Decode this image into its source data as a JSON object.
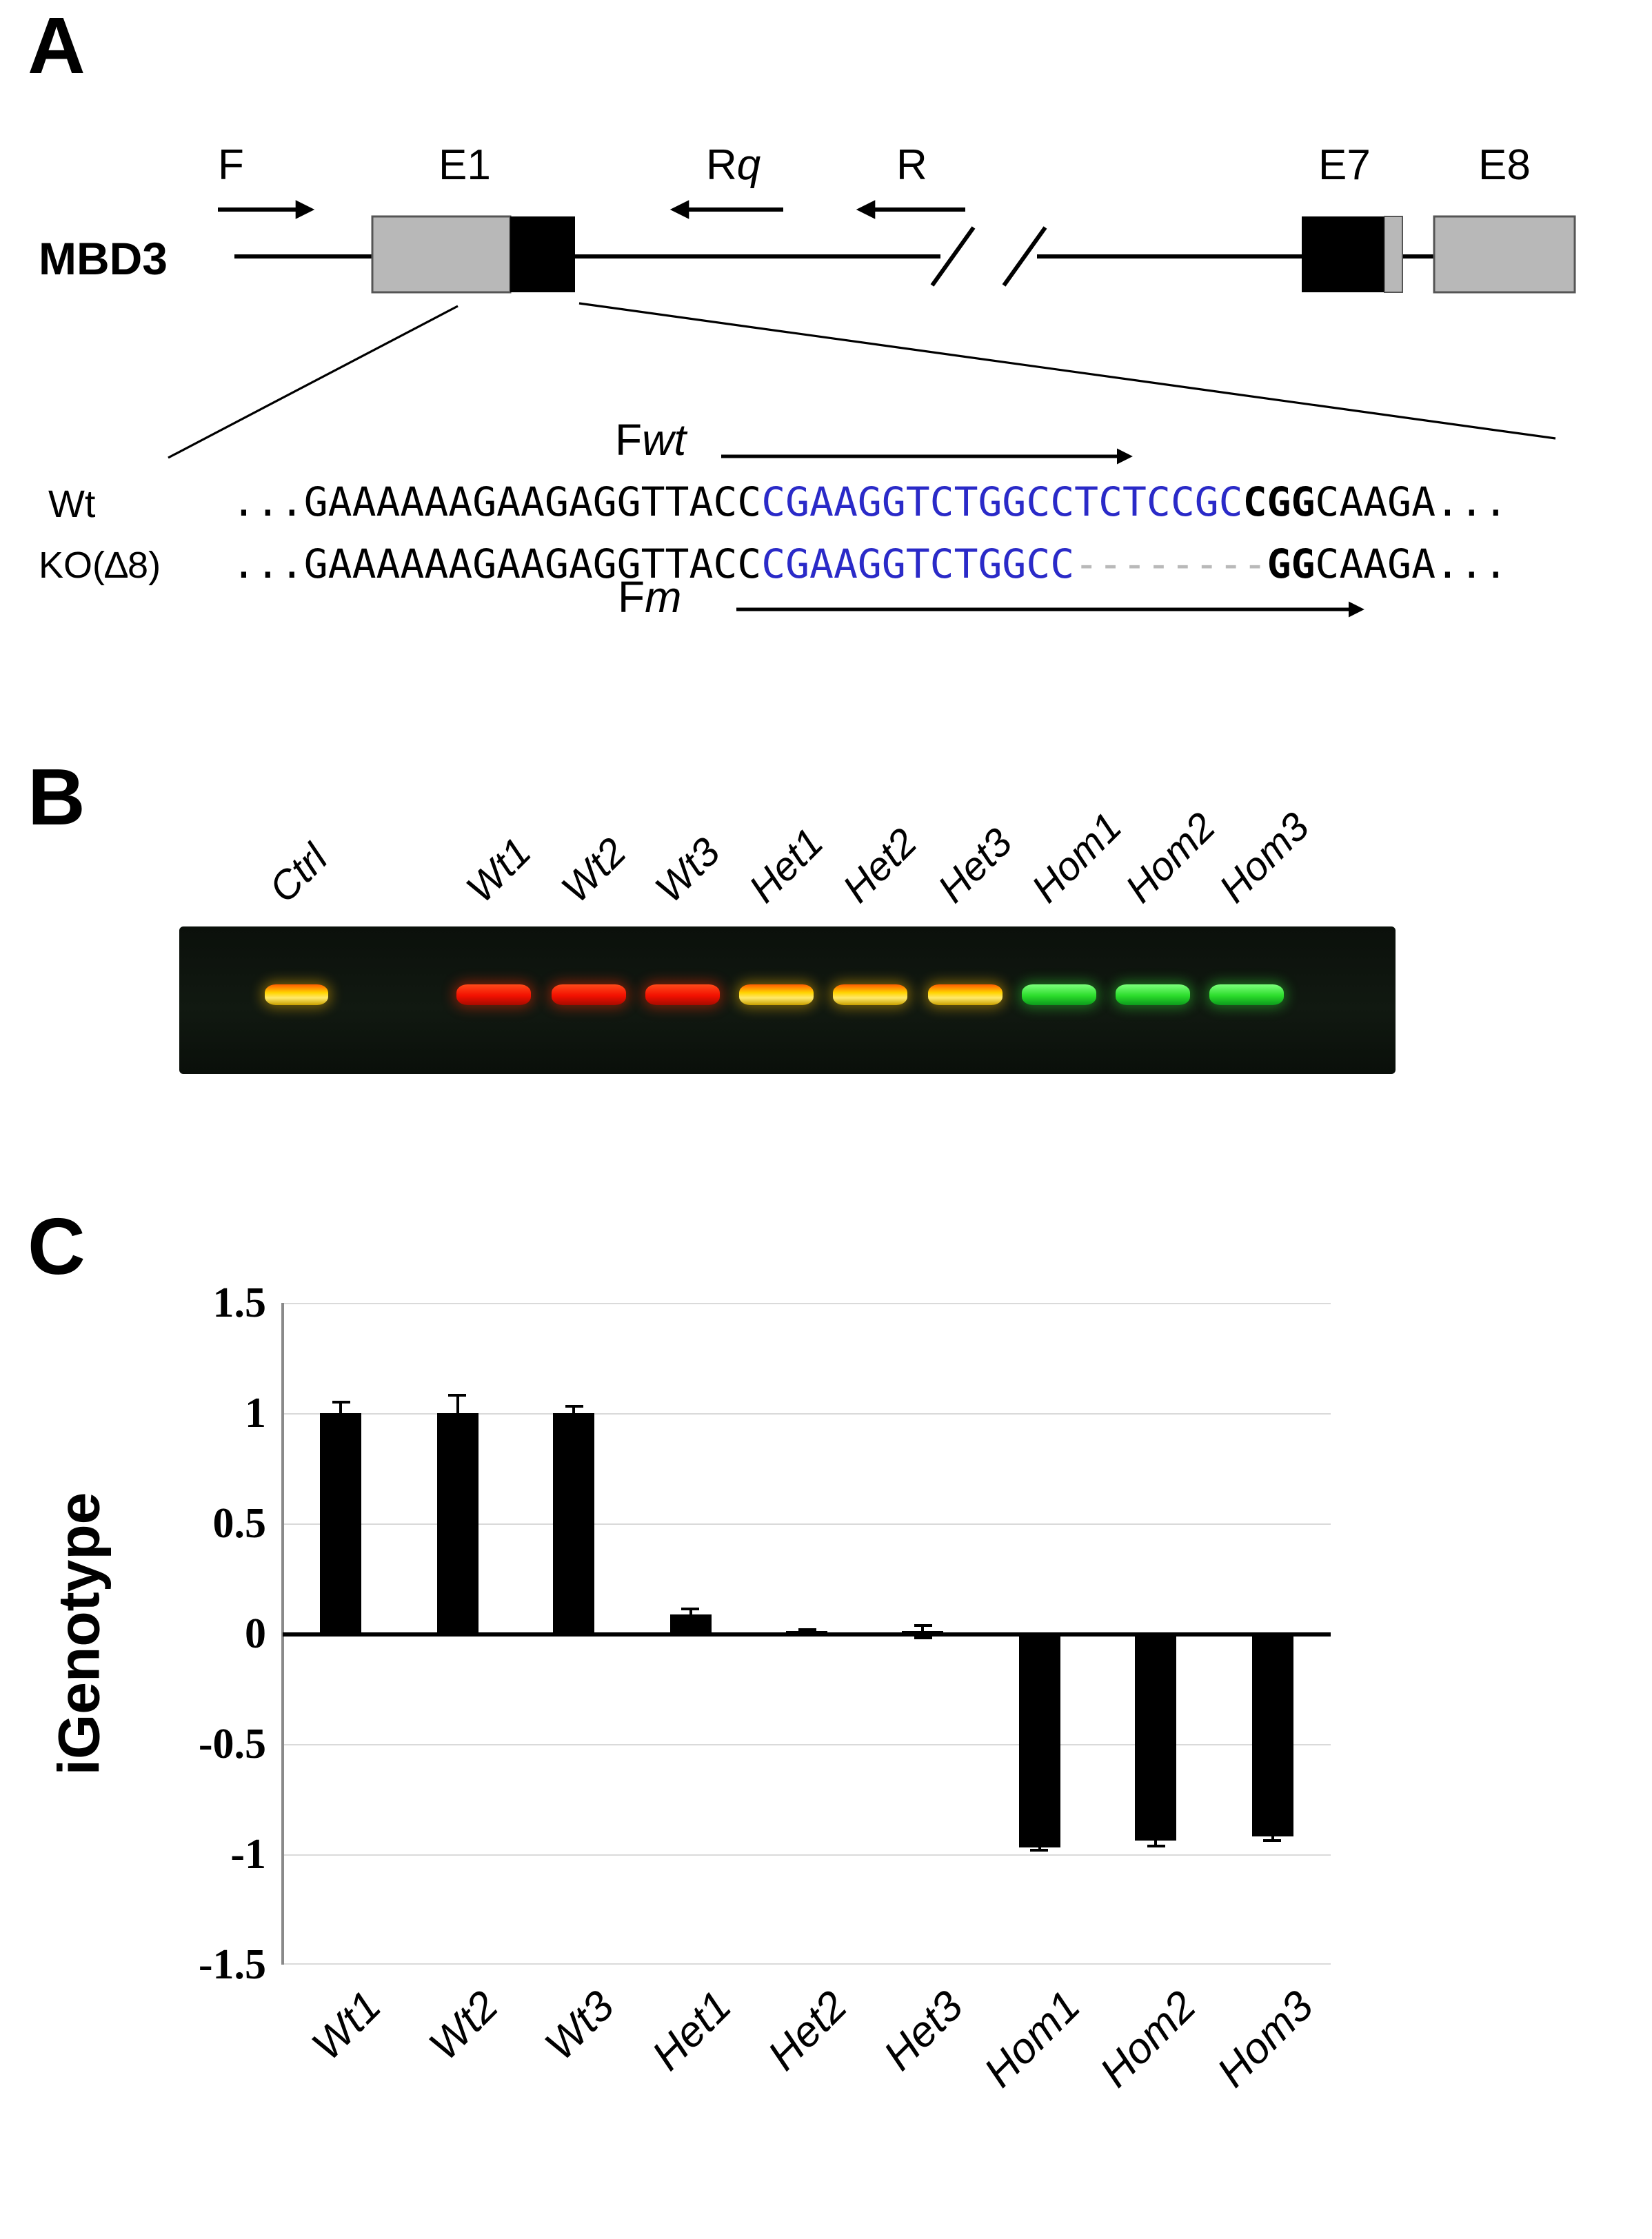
{
  "colors": {
    "sequence_blue": "#2a2ac8",
    "band_red": "#f21000",
    "band_yellow": "#ffd400",
    "band_green": "#2bdc2b",
    "bar": "#000000"
  },
  "panelA": {
    "label": "A",
    "gene": "MBD3",
    "primer_f": "F",
    "primer_rq": {
      "main": "R",
      "italic": "q"
    },
    "primer_r": "R",
    "exon_e1": "E1",
    "exon_e7": "E7",
    "exon_e8": "E8",
    "primer_fwt": {
      "main": "F",
      "italic": "wt"
    },
    "primer_fm": {
      "main": "F",
      "italic": "m"
    },
    "alleles": [
      {
        "name": "Wt",
        "prefix": "...GAAAAAAGAAGAGGTTACC",
        "blue": "CGAAGGTCTGGCCTCTCCGC",
        "dashes": "",
        "bold": "CGG",
        "suffix": "CAAGA..."
      },
      {
        "name": "KO(∆8)",
        "prefix": "...GAAAAAAGAAGAGGTTACC",
        "blue": "CGAAGGTCTGGCC",
        "dashes": "--------",
        "bold": "GG",
        "suffix": "CAAGA..."
      }
    ]
  },
  "panelB": {
    "label": "B",
    "lanes": [
      {
        "name": "Ctrl",
        "color": "yellow"
      },
      {
        "name": "Wt1",
        "color": "red"
      },
      {
        "name": "Wt2",
        "color": "red"
      },
      {
        "name": "Wt3",
        "color": "red"
      },
      {
        "name": "Het1",
        "color": "yellow"
      },
      {
        "name": "Het2",
        "color": "yellow"
      },
      {
        "name": "Het3",
        "color": "yellow"
      },
      {
        "name": "Hom1",
        "color": "green"
      },
      {
        "name": "Hom2",
        "color": "green"
      },
      {
        "name": "Hom3",
        "color": "green"
      }
    ]
  },
  "panelC": {
    "label": "C"
  },
  "chart_data": {
    "type": "bar",
    "categories": [
      "Wt1",
      "Wt2",
      "Wt3",
      "Het1",
      "Het2",
      "Het3",
      "Hom1",
      "Hom2",
      "Hom3"
    ],
    "values": [
      1.0,
      1.0,
      1.0,
      0.09,
      0.01,
      0.01,
      -0.97,
      -0.94,
      -0.92
    ],
    "errors": [
      0.05,
      0.08,
      0.03,
      0.02,
      0.01,
      0.03,
      0.01,
      0.02,
      0.02
    ],
    "title": "",
    "xlabel": "",
    "ylabel": "iGenotype",
    "yticks": [
      "1.5",
      "1",
      "0.5",
      "0",
      "-0.5",
      "-1",
      "-1.5"
    ],
    "ylim": [
      -1.5,
      1.5
    ],
    "bar_color": "#000000",
    "grid": true,
    "legend": false
  }
}
